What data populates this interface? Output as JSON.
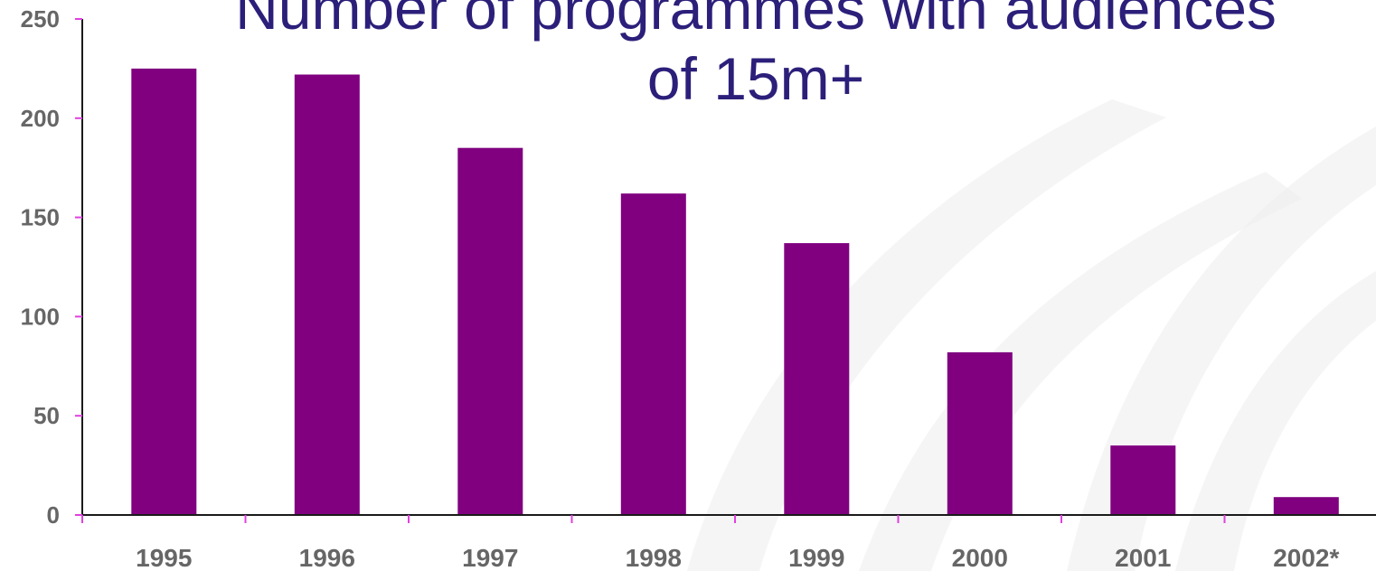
{
  "colors": {
    "bar": "#800080",
    "axis_line": "#1a1a1a",
    "tick_mark": "#e040e0",
    "tick_text": "#666666",
    "title": "#2b1f7a",
    "swoosh": "#ececec"
  },
  "chart_data": {
    "type": "bar",
    "title_lines": [
      "Number of programmes with audiences",
      "of 15m+"
    ],
    "categories": [
      "1995",
      "1996",
      "1997",
      "1998",
      "1999",
      "2000",
      "2001",
      "2002*"
    ],
    "values": [
      225,
      222,
      185,
      162,
      137,
      82,
      35,
      9
    ],
    "xlabel": "",
    "ylabel": "",
    "ylim": [
      0,
      250
    ],
    "yticks": [
      "0",
      "50",
      "100",
      "150",
      "200",
      "250"
    ],
    "grid": false,
    "legend": "none"
  }
}
